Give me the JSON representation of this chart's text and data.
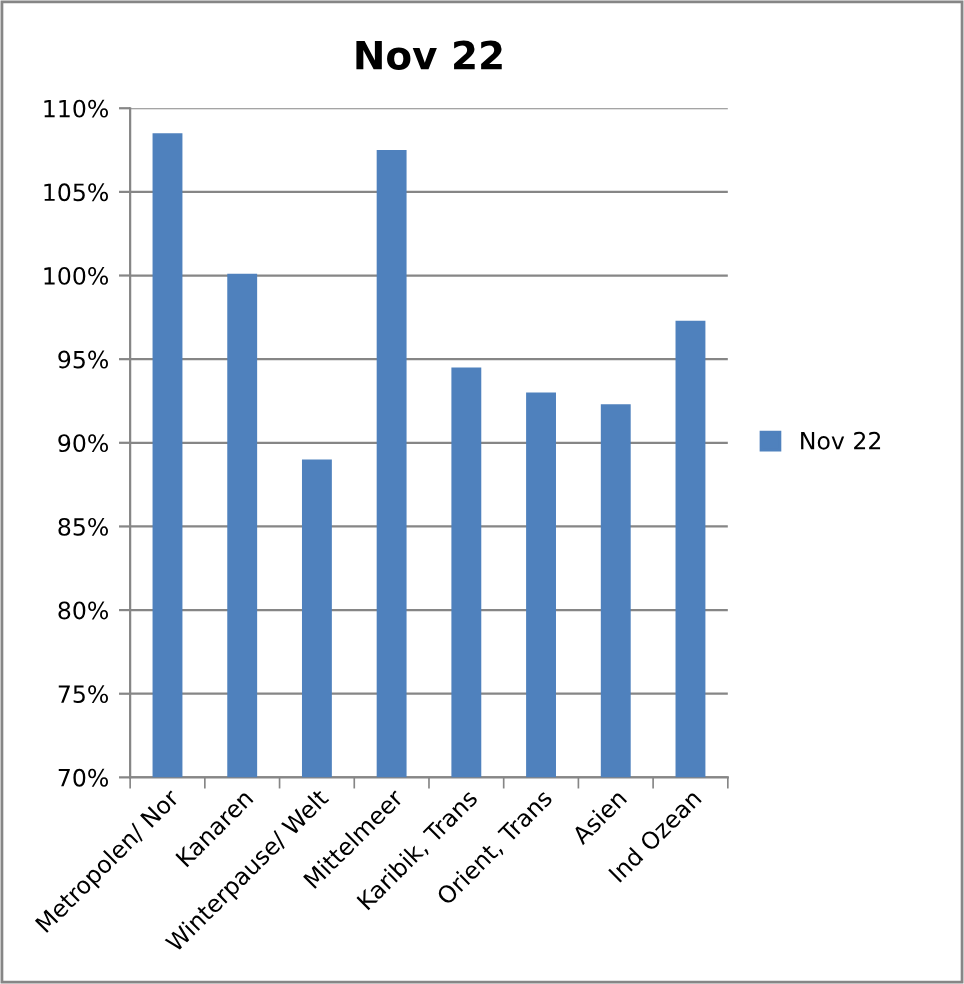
{
  "chart_data": {
    "type": "bar",
    "title": "Nov 22",
    "categories": [
      "Metropolen/ Nor",
      "Kanaren",
      "Winterpause/ Welt",
      "Mittelmeer",
      "Karibik, Trans",
      "Orient, Trans",
      "Asien",
      "Ind Ozean"
    ],
    "series": [
      {
        "name": "Nov 22",
        "color": "#4f81bd",
        "values": [
          108.5,
          100.1,
          89.0,
          107.5,
          94.5,
          93.0,
          92.3,
          97.3
        ]
      }
    ],
    "ylim": [
      70,
      110
    ],
    "yticks": [
      {
        "value": 70,
        "label": "70%"
      },
      {
        "value": 75,
        "label": "75%"
      },
      {
        "value": 80,
        "label": "80%"
      },
      {
        "value": 85,
        "label": "85%"
      },
      {
        "value": 90,
        "label": "90%"
      },
      {
        "value": 95,
        "label": "95%"
      },
      {
        "value": 100,
        "label": "100%"
      },
      {
        "value": 105,
        "label": "105%"
      },
      {
        "value": 110,
        "label": "110%"
      }
    ],
    "grid": "y",
    "legend": "right"
  }
}
